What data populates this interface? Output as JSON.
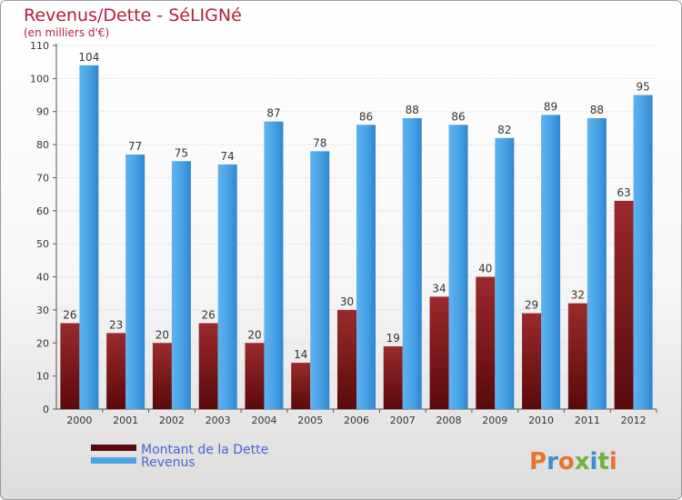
{
  "chart_data": {
    "type": "bar",
    "title": "Revenus/Dette - SéLIGNé",
    "subtitle": "(en milliers d'€)",
    "categories": [
      "2000",
      "2001",
      "2002",
      "2003",
      "2004",
      "2005",
      "2006",
      "2007",
      "2008",
      "2009",
      "2010",
      "2011",
      "2012"
    ],
    "series": [
      {
        "name": "Montant de la Dette",
        "values": [
          26,
          23,
          20,
          26,
          20,
          14,
          30,
          19,
          34,
          40,
          29,
          32,
          63
        ],
        "color": "#7a1416"
      },
      {
        "name": "Revenus",
        "values": [
          104,
          77,
          75,
          74,
          87,
          78,
          86,
          88,
          86,
          82,
          89,
          88,
          95
        ],
        "color": "#4aa3e6"
      }
    ],
    "ylim": [
      0,
      110
    ],
    "yticks": [
      0,
      10,
      20,
      30,
      40,
      50,
      60,
      70,
      80,
      90,
      100,
      110
    ],
    "grid": true,
    "legend": "bottom-left"
  },
  "brand": {
    "logo_text": "Proxiti"
  }
}
